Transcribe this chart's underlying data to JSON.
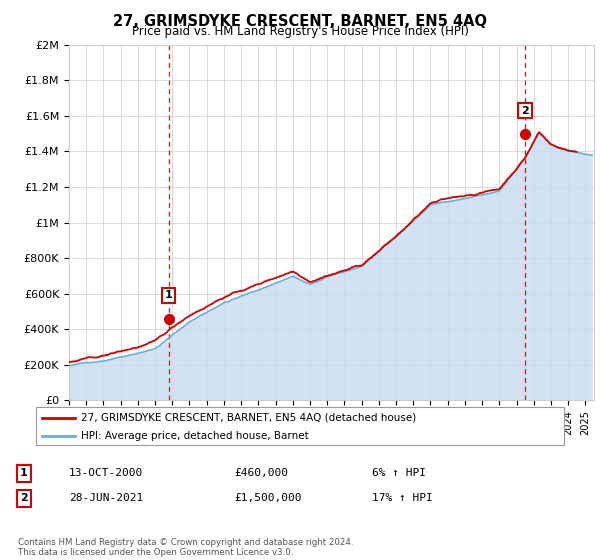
{
  "title": "27, GRIMSDYKE CRESCENT, BARNET, EN5 4AQ",
  "subtitle": "Price paid vs. HM Land Registry's House Price Index (HPI)",
  "ylabel_ticks": [
    "£0",
    "£200K",
    "£400K",
    "£600K",
    "£800K",
    "£1M",
    "£1.2M",
    "£1.4M",
    "£1.6M",
    "£1.8M",
    "£2M"
  ],
  "ytick_values": [
    0,
    200000,
    400000,
    600000,
    800000,
    1000000,
    1200000,
    1400000,
    1600000,
    1800000,
    2000000
  ],
  "ylim": [
    0,
    2000000
  ],
  "xlim_start": 1995.0,
  "xlim_end": 2025.5,
  "purchase1_x": 2000.79,
  "purchase1_y": 460000,
  "purchase1_label": "1",
  "purchase2_x": 2021.49,
  "purchase2_y": 1500000,
  "purchase2_label": "2",
  "hpi_line_color": "#6baed6",
  "hpi_fill_color": "#c6dbef",
  "price_color": "#cc0000",
  "marker_color": "#cc0000",
  "vline_color": "#cc0000",
  "grid_color": "#cccccc",
  "background_color": "#ffffff",
  "legend_label_price": "27, GRIMSDYKE CRESCENT, BARNET, EN5 4AQ (detached house)",
  "legend_label_hpi": "HPI: Average price, detached house, Barnet",
  "annotation1_num": "1",
  "annotation1_date": "13-OCT-2000",
  "annotation1_price": "£460,000",
  "annotation1_hpi": "6% ↑ HPI",
  "annotation2_num": "2",
  "annotation2_date": "28-JUN-2021",
  "annotation2_price": "£1,500,000",
  "annotation2_hpi": "17% ↑ HPI",
  "footnote": "Contains HM Land Registry data © Crown copyright and database right 2024.\nThis data is licensed under the Open Government Licence v3.0."
}
